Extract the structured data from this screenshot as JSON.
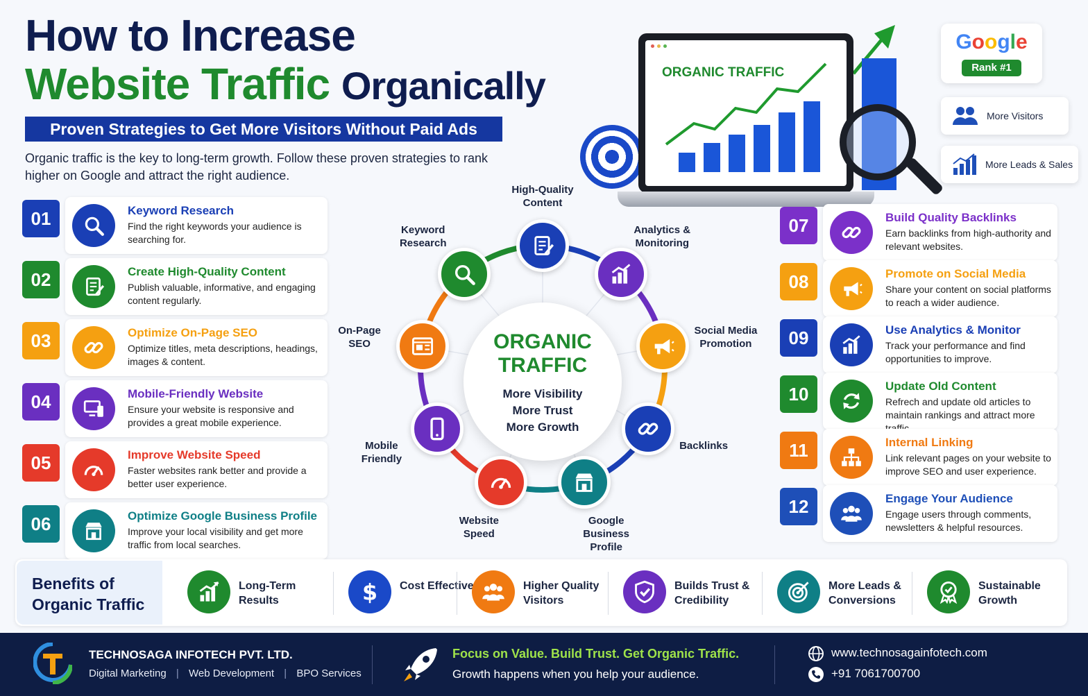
{
  "header": {
    "title_line1": "How to Increase",
    "title_line2_green": "Website Traffic",
    "title_line2_dark": "Organically",
    "subtitle": "Proven Strategies to Get More Visitors Without Paid Ads",
    "intro": "Organic traffic is the key to long-term growth. Follow these proven strategies to rank higher on Google and attract the right audience."
  },
  "hero": {
    "screen_label": "ORGANIC TRAFFIC",
    "google_word": "Google",
    "rank_badge": "Rank #1",
    "cards": [
      "More Visitors",
      "More Leads & Sales"
    ]
  },
  "strategies": [
    {
      "num": "01",
      "title": "Keyword Research",
      "desc": "Find the right keywords your audience is searching for.",
      "color": "#1a3fb5",
      "icon": "search-icon"
    },
    {
      "num": "02",
      "title": "Create High-Quality Content",
      "desc": "Publish valuable, informative, and engaging content regularly.",
      "color": "#1f8a2e",
      "icon": "document-edit-icon"
    },
    {
      "num": "03",
      "title": "Optimize On-Page SEO",
      "desc": "Optimize titles, meta descriptions, headings, images & content.",
      "color": "#f5a011",
      "icon": "link-icon"
    },
    {
      "num": "04",
      "title": "Mobile-Friendly Website",
      "desc": "Ensure your website is responsive and provides a great mobile experience.",
      "color": "#6a2fc0",
      "icon": "devices-icon"
    },
    {
      "num": "05",
      "title": "Improve Website Speed",
      "desc": "Faster websites rank better and provide a better user experience.",
      "color": "#e53a2a",
      "icon": "speedometer-icon"
    },
    {
      "num": "06",
      "title": "Optimize Google Business Profile",
      "desc": "Improve your local visibility and get more traffic from local searches.",
      "color": "#0f7f86",
      "icon": "storefront-icon"
    },
    {
      "num": "07",
      "title": "Build Quality Backlinks",
      "desc": "Earn backlinks from high-authority and relevant websites.",
      "color": "#7b30c9",
      "icon": "link-icon"
    },
    {
      "num": "08",
      "title": "Promote on Social Media",
      "desc": "Share your content on social platforms to reach a wider audience.",
      "color": "#f5a011",
      "icon": "megaphone-icon"
    },
    {
      "num": "09",
      "title": "Use Analytics & Monitor",
      "desc": "Track your performance and find opportunities to improve.",
      "color": "#1a3fb5",
      "icon": "analytics-icon"
    },
    {
      "num": "10",
      "title": "Update Old Content",
      "desc": "Refrech and update old articles to maintain rankings and attract more traffic.",
      "color": "#1f8a2e",
      "icon": "refresh-icon"
    },
    {
      "num": "11",
      "title": "Internal Linking",
      "desc": "Link relevant pages on your website to improve SEO and user experience.",
      "color": "#f07a12",
      "icon": "sitemap-icon"
    },
    {
      "num": "12",
      "title": "Engage Your Audience",
      "desc": "Engage users through comments, newsletters & helpful resources.",
      "color": "#1e4fb8",
      "icon": "users-icon"
    }
  ],
  "wheel": {
    "hub_title_1": "ORGANIC",
    "hub_title_2": "TRAFFIC",
    "hub_lines": [
      "More Visibility",
      "More Trust",
      "More Growth"
    ],
    "nodes": [
      {
        "label": "High-Quality\nContent",
        "color": "#1a3fb5",
        "icon": "document-edit-icon"
      },
      {
        "label": "Analytics &\nMonitoring",
        "color": "#6a2fc0",
        "icon": "analytics-icon"
      },
      {
        "label": "Social Media\nPromotion",
        "color": "#f5a011",
        "icon": "megaphone-icon"
      },
      {
        "label": "Backlinks",
        "color": "#1a3fb5",
        "icon": "link-icon"
      },
      {
        "label": "Google\nBusiness\nProfile",
        "color": "#0f7f86",
        "icon": "storefront-icon"
      },
      {
        "label": "Website\nSpeed",
        "color": "#e53a2a",
        "icon": "speedometer-icon"
      },
      {
        "label": "Mobile\nFriendly",
        "color": "#6a2fc0",
        "icon": "mobile-icon"
      },
      {
        "label": "On-Page\nSEO",
        "color": "#f07a12",
        "icon": "browser-icon"
      },
      {
        "label": "Keyword\nResearch",
        "color": "#1f8a2e",
        "icon": "search-icon"
      }
    ]
  },
  "benefits": {
    "heading": "Benefits of Organic Traffic",
    "items": [
      {
        "label": "Long-Term Results",
        "color": "#1f8a2e",
        "icon": "growth-chart-icon"
      },
      {
        "label": "Cost Effective",
        "color": "#1a49c8",
        "icon": "dollar-icon"
      },
      {
        "label": "Higher Quality Visitors",
        "color": "#f07a12",
        "icon": "users-icon"
      },
      {
        "label": "Builds Trust & Credibility",
        "color": "#6a2fc0",
        "icon": "shield-check-icon"
      },
      {
        "label": "More Leads & Conversions",
        "color": "#0f7f86",
        "icon": "target-icon"
      },
      {
        "label": "Sustainable Growth",
        "color": "#1f8a2e",
        "icon": "award-icon"
      }
    ]
  },
  "footer": {
    "company": "TECHNOSAGA INFOTECH PVT. LTD.",
    "services": [
      "Digital Marketing",
      "Web Development",
      "BPO Services"
    ],
    "slogan": "Focus on Value. Build Trust. Get Organic Traffic.",
    "sub": "Growth happens when you help your audience.",
    "website": "www.technosagainfotech.com",
    "phone": "+91 7061700700"
  }
}
